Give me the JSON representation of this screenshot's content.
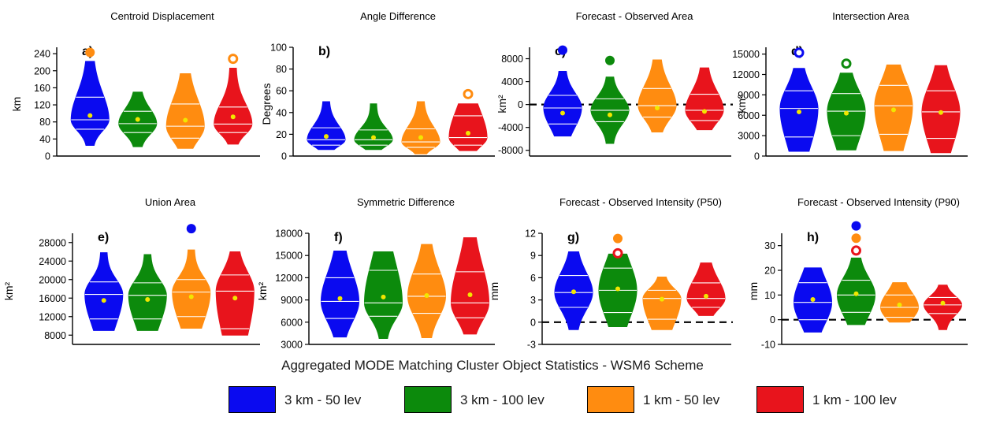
{
  "figure": {
    "title": "Aggregated MODE Matching Cluster Object Statistics - WSM6 Scheme",
    "legend": [
      {
        "label": "3 km - 50 lev",
        "color": "#0a0af0"
      },
      {
        "label": "3 km - 100 lev",
        "color": "#0c8a0c"
      },
      {
        "label": "1 km - 50 lev",
        "color": "#ff8c10"
      },
      {
        "label": "1 km - 100 lev",
        "color": "#e8141c"
      }
    ]
  },
  "chart_data": [
    {
      "type": "violin",
      "panel": "a)",
      "title": "Centroid Displacement",
      "ylabel": "km",
      "yticks": [
        "0",
        "40",
        "80",
        "120",
        "160",
        "200",
        "240"
      ],
      "ylim": [
        0,
        255
      ],
      "series": [
        {
          "name": "3 km - 50 lev",
          "color": "#0a0af0",
          "min": 25,
          "max": 222,
          "q1": 63,
          "median": 85,
          "q3": 138,
          "mean": 95,
          "outlier": 243,
          "outlier_filled": true,
          "outlier_color": "#ff8c10"
        },
        {
          "name": "3 km - 100 lev",
          "color": "#0c8a0c",
          "min": 22,
          "max": 150,
          "q1": 55,
          "median": 76,
          "q3": 105,
          "mean": 86
        },
        {
          "name": "1 km - 50 lev",
          "color": "#ff8c10",
          "min": 18,
          "max": 193,
          "q1": 42,
          "median": 70,
          "q3": 122,
          "mean": 84
        },
        {
          "name": "1 km - 100 lev",
          "color": "#e8141c",
          "min": 28,
          "max": 206,
          "q1": 55,
          "median": 75,
          "q3": 115,
          "mean": 92,
          "outlier": 228,
          "outlier_filled": false,
          "outlier_color": "#ff8c10"
        }
      ]
    },
    {
      "type": "violin",
      "panel": "b)",
      "title": "Angle Difference",
      "ylabel": "Degrees",
      "yticks": [
        "0",
        "20",
        "40",
        "60",
        "80",
        "100"
      ],
      "ylim": [
        0,
        100
      ],
      "series": [
        {
          "name": "3 km - 50 lev",
          "color": "#0a0af0",
          "min": 6,
          "max": 50,
          "q1": 10,
          "median": 15,
          "q3": 26,
          "mean": 18
        },
        {
          "name": "3 km - 100 lev",
          "color": "#0c8a0c",
          "min": 6,
          "max": 48,
          "q1": 10,
          "median": 15,
          "q3": 24,
          "mean": 17
        },
        {
          "name": "1 km - 50 lev",
          "color": "#ff8c10",
          "min": 2,
          "max": 50,
          "q1": 8,
          "median": 13,
          "q3": 25,
          "mean": 17
        },
        {
          "name": "1 km - 100 lev",
          "color": "#e8141c",
          "min": 5,
          "max": 48,
          "q1": 10,
          "median": 17,
          "q3": 37,
          "mean": 21,
          "outlier": 57,
          "outlier_filled": false,
          "outlier_color": "#ff8c10"
        }
      ]
    },
    {
      "type": "violin",
      "panel": "c)",
      "title": "Forecast - Observed Area",
      "ylabel": "km²",
      "yticks": [
        "-8000",
        "-4000",
        "0",
        "4000",
        "8000"
      ],
      "ylim": [
        -9000,
        10000
      ],
      "zero_line": true,
      "series": [
        {
          "name": "3 km - 50 lev",
          "color": "#0a0af0",
          "min": -5500,
          "max": 5800,
          "q1": -3400,
          "median": -600,
          "q3": 1600,
          "mean": -1500,
          "outlier": 9500,
          "outlier_filled": true,
          "outlier_color": "#0a0af0"
        },
        {
          "name": "3 km - 100 lev",
          "color": "#0c8a0c",
          "min": -6800,
          "max": 4800,
          "q1": -3000,
          "median": -1000,
          "q3": 1000,
          "mean": -1800,
          "outlier": 7700,
          "outlier_filled": true,
          "outlier_color": "#0c8a0c"
        },
        {
          "name": "1 km - 50 lev",
          "color": "#ff8c10",
          "min": -4800,
          "max": 7800,
          "q1": -2200,
          "median": -200,
          "q3": 2800,
          "mean": -600
        },
        {
          "name": "1 km - 100 lev",
          "color": "#e8141c",
          "min": -4400,
          "max": 6400,
          "q1": -2800,
          "median": -1000,
          "q3": 1800,
          "mean": -1200
        }
      ]
    },
    {
      "type": "violin",
      "panel": "d)",
      "title": "Intersection Area",
      "ylabel": "km²",
      "yticks": [
        "0",
        "3000",
        "6000",
        "9000",
        "12000",
        "15000"
      ],
      "ylim": [
        0,
        16000
      ],
      "series": [
        {
          "name": "3 km - 50 lev",
          "color": "#0a0af0",
          "min": 700,
          "max": 12900,
          "q1": 2800,
          "median": 7000,
          "q3": 9600,
          "mean": 6500,
          "outlier": 15200,
          "outlier_filled": false,
          "outlier_color": "#0a0af0"
        },
        {
          "name": "3 km - 100 lev",
          "color": "#0c8a0c",
          "min": 900,
          "max": 12200,
          "q1": 3000,
          "median": 6600,
          "q3": 9200,
          "mean": 6300,
          "outlier": 13600,
          "outlier_filled": false,
          "outlier_color": "#0c8a0c"
        },
        {
          "name": "1 km - 50 lev",
          "color": "#ff8c10",
          "min": 800,
          "max": 13400,
          "q1": 3200,
          "median": 7400,
          "q3": 10400,
          "mean": 6800
        },
        {
          "name": "1 km - 100 lev",
          "color": "#e8141c",
          "min": 500,
          "max": 13300,
          "q1": 2600,
          "median": 6500,
          "q3": 9600,
          "mean": 6400
        }
      ]
    },
    {
      "type": "violin",
      "panel": "e)",
      "title": "Union Area",
      "ylabel": "km²",
      "yticks": [
        "8000",
        "12000",
        "16000",
        "20000",
        "24000",
        "28000"
      ],
      "ylim": [
        6000,
        30000
      ],
      "series": [
        {
          "name": "3 km - 50 lev",
          "color": "#0a0af0",
          "min": 9000,
          "max": 25800,
          "q1": 11500,
          "median": 16800,
          "q3": 19500,
          "mean": 15500
        },
        {
          "name": "3 km - 100 lev",
          "color": "#0c8a0c",
          "min": 9000,
          "max": 25400,
          "q1": 11500,
          "median": 16600,
          "q3": 19300,
          "mean": 15700
        },
        {
          "name": "1 km - 50 lev",
          "color": "#ff8c10",
          "min": 9500,
          "max": 26400,
          "q1": 12000,
          "median": 17300,
          "q3": 20000,
          "mean": 16300,
          "outlier": 31000,
          "outlier_filled": true,
          "outlier_color": "#0a0af0"
        },
        {
          "name": "1 km - 100 lev",
          "color": "#e8141c",
          "min": 8000,
          "max": 26000,
          "q1": 9400,
          "median": 17500,
          "q3": 21000,
          "mean": 16000
        }
      ]
    },
    {
      "type": "violin",
      "panel": "f)",
      "title": "Symmetric Difference",
      "ylabel": "km²",
      "yticks": [
        "3000",
        "6000",
        "9000",
        "12000",
        "15000",
        "18000"
      ],
      "ylim": [
        3000,
        18000
      ],
      "series": [
        {
          "name": "3 km - 50 lev",
          "color": "#0a0af0",
          "min": 4000,
          "max": 15600,
          "q1": 6500,
          "median": 8800,
          "q3": 12000,
          "mean": 9200
        },
        {
          "name": "3 km - 100 lev",
          "color": "#0c8a0c",
          "min": 3800,
          "max": 15500,
          "q1": 6800,
          "median": 8600,
          "q3": 13000,
          "mean": 9400
        },
        {
          "name": "1 km - 50 lev",
          "color": "#ff8c10",
          "min": 3900,
          "max": 16500,
          "q1": 7200,
          "median": 9500,
          "q3": 12500,
          "mean": 9600
        },
        {
          "name": "1 km - 100 lev",
          "color": "#e8141c",
          "min": 4400,
          "max": 17400,
          "q1": 6600,
          "median": 8600,
          "q3": 12800,
          "mean": 9700
        }
      ]
    },
    {
      "type": "violin",
      "panel": "g)",
      "title": "Forecast - Observed Intensity (P50)",
      "ylabel": "mm",
      "yticks": [
        "-3",
        "0",
        "3",
        "6",
        "9",
        "12"
      ],
      "ylim": [
        -3,
        12
      ],
      "zero_line": true,
      "series": [
        {
          "name": "3 km - 50 lev",
          "color": "#0a0af0",
          "min": -1,
          "max": 9.5,
          "q1": 2,
          "median": 4,
          "q3": 6.3,
          "mean": 4.1
        },
        {
          "name": "3 km - 100 lev",
          "color": "#0c8a0c",
          "min": -0.6,
          "max": 9.2,
          "q1": 1.3,
          "median": 4.3,
          "q3": 7.3,
          "mean": 4.5,
          "outlier": 9.3,
          "outlier_filled": false,
          "outlier_color": "#e8141c",
          "outlier2": 11.3,
          "outlier2_filled": true,
          "outlier2_color": "#ff8c10"
        },
        {
          "name": "1 km - 50 lev",
          "color": "#ff8c10",
          "min": -1,
          "max": 6.1,
          "q1": 0.4,
          "median": 3.2,
          "q3": 4.3,
          "mean": 3.1
        },
        {
          "name": "1 km - 100 lev",
          "color": "#e8141c",
          "min": 0.9,
          "max": 8,
          "q1": 2,
          "median": 3.2,
          "q3": 5.3,
          "mean": 3.5
        }
      ]
    },
    {
      "type": "violin",
      "panel": "h)",
      "title": "Forecast - Observed Intensity (P90)",
      "ylabel": "mm",
      "yticks": [
        "-10",
        "0",
        "10",
        "20",
        "30"
      ],
      "ylim": [
        -10,
        35
      ],
      "zero_line": true,
      "series": [
        {
          "name": "3 km - 50 lev",
          "color": "#0a0af0",
          "min": -5,
          "max": 21,
          "q1": 0,
          "median": 7,
          "q3": 15,
          "mean": 8.2
        },
        {
          "name": "3 km - 100 lev",
          "color": "#0c8a0c",
          "min": -2,
          "max": 25,
          "q1": 3,
          "median": 10,
          "q3": 16,
          "mean": 10.5,
          "outlier": 28,
          "outlier_filled": false,
          "outlier_color": "#e8141c",
          "outlier2": 33,
          "outlier2_filled": true,
          "outlier2_color": "#ff8c10",
          "outlier3": 38,
          "outlier3_filled": true,
          "outlier3_color": "#0a0af0"
        },
        {
          "name": "1 km - 50 lev",
          "color": "#ff8c10",
          "min": -1,
          "max": 15,
          "q1": 1,
          "median": 5,
          "q3": 10,
          "mean": 6
        },
        {
          "name": "1 km - 100 lev",
          "color": "#e8141c",
          "min": -4,
          "max": 14,
          "q1": 2.5,
          "median": 6,
          "q3": 9,
          "mean": 6.7
        }
      ]
    }
  ]
}
